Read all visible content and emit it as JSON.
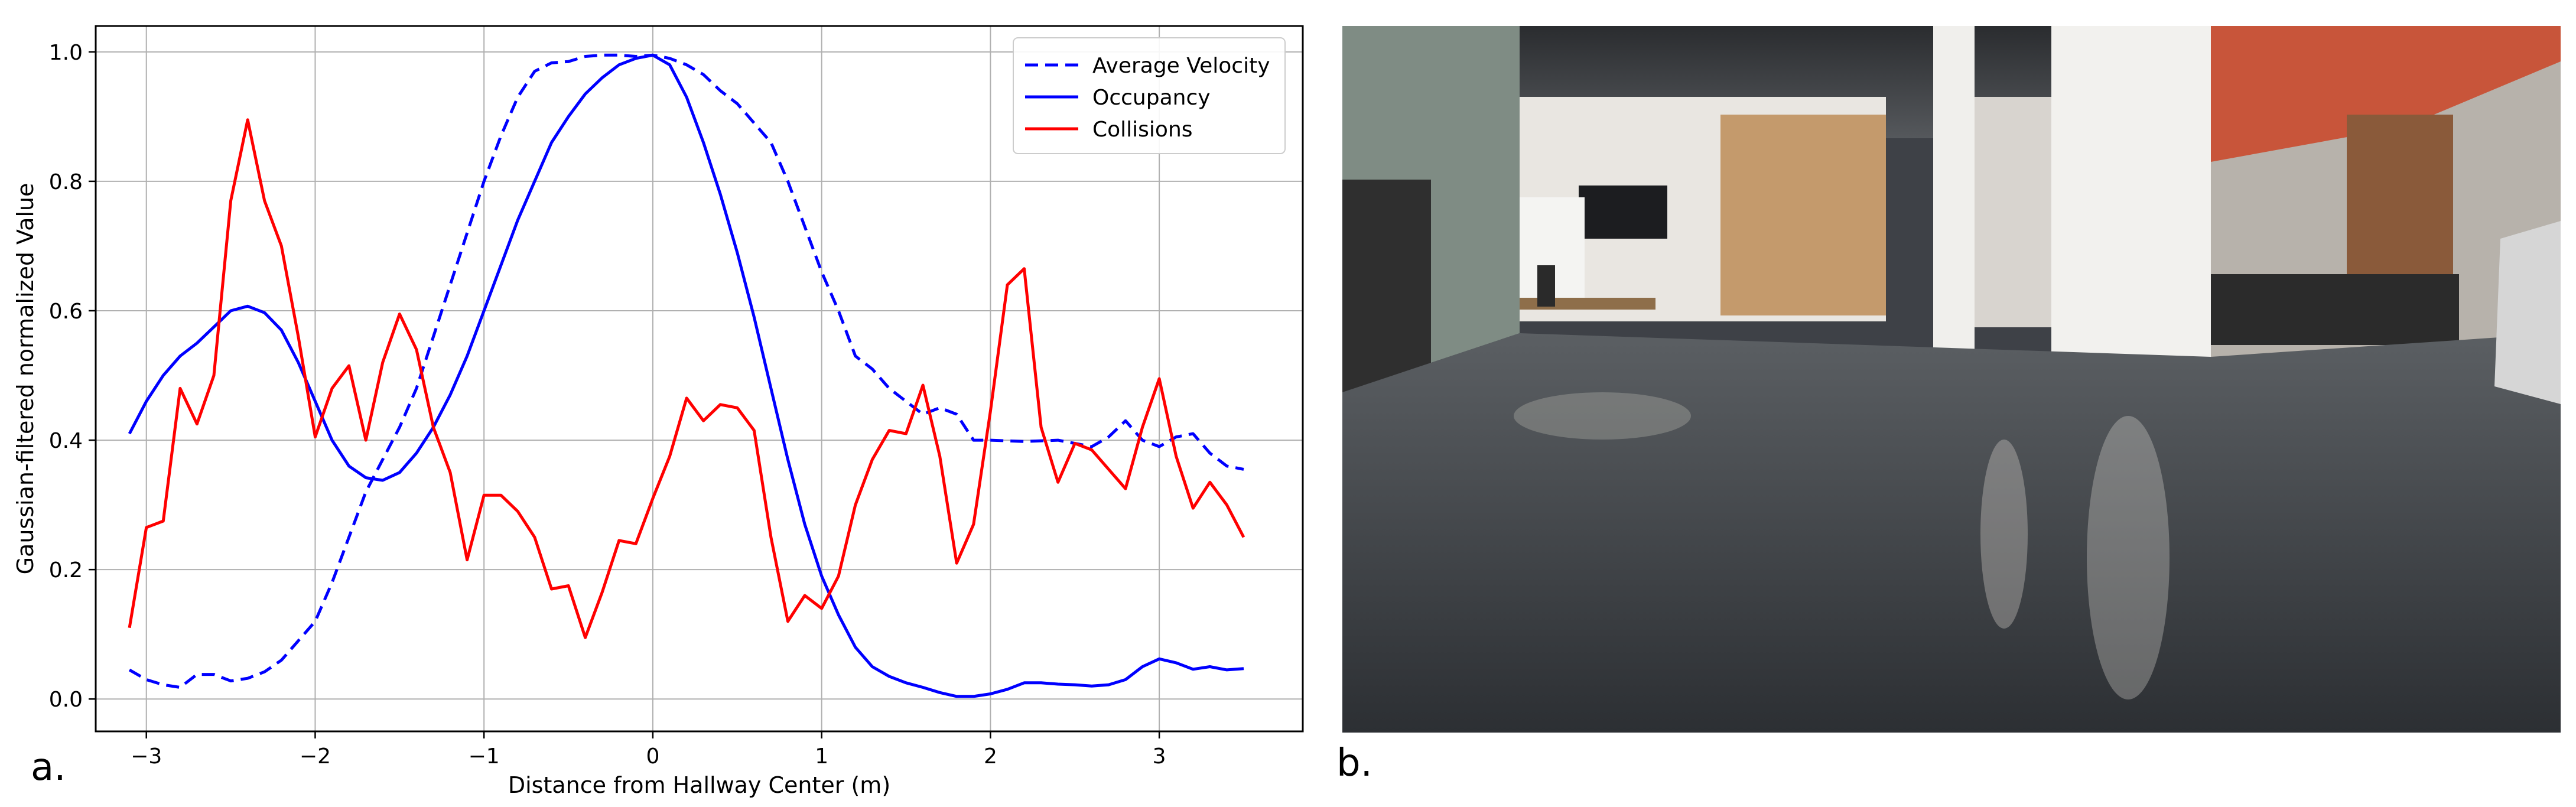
{
  "panels": {
    "a_label": "a.",
    "b_label": "b."
  },
  "chart_data": {
    "type": "line",
    "title": "",
    "xlabel": "Distance from Hallway Center (m)",
    "ylabel": "Gaussian-filtered normalized Value",
    "xlim": [
      -3.3,
      3.85
    ],
    "ylim": [
      -0.05,
      1.04
    ],
    "xticks": [
      -3,
      -2,
      -1,
      0,
      1,
      2,
      3
    ],
    "yticks": [
      0.0,
      0.2,
      0.4,
      0.6,
      0.8,
      1.0
    ],
    "grid": true,
    "legend_position": "top-right",
    "series": [
      {
        "name": "Average Velocity",
        "color": "#0000ff",
        "style": "dashed",
        "points": [
          [
            -3.1,
            0.045
          ],
          [
            -3.0,
            0.03
          ],
          [
            -2.9,
            0.022
          ],
          [
            -2.8,
            0.018
          ],
          [
            -2.7,
            0.038
          ],
          [
            -2.6,
            0.038
          ],
          [
            -2.5,
            0.028
          ],
          [
            -2.4,
            0.032
          ],
          [
            -2.3,
            0.042
          ],
          [
            -2.2,
            0.06
          ],
          [
            -2.1,
            0.09
          ],
          [
            -2.0,
            0.12
          ],
          [
            -1.9,
            0.18
          ],
          [
            -1.8,
            0.25
          ],
          [
            -1.7,
            0.32
          ],
          [
            -1.6,
            0.37
          ],
          [
            -1.5,
            0.42
          ],
          [
            -1.4,
            0.48
          ],
          [
            -1.3,
            0.56
          ],
          [
            -1.2,
            0.64
          ],
          [
            -1.1,
            0.72
          ],
          [
            -1.0,
            0.8
          ],
          [
            -0.9,
            0.87
          ],
          [
            -0.8,
            0.93
          ],
          [
            -0.7,
            0.97
          ],
          [
            -0.6,
            0.983
          ],
          [
            -0.5,
            0.985
          ],
          [
            -0.4,
            0.993
          ],
          [
            -0.3,
            0.995
          ],
          [
            -0.2,
            0.995
          ],
          [
            -0.1,
            0.993
          ],
          [
            0.0,
            0.995
          ],
          [
            0.1,
            0.99
          ],
          [
            0.2,
            0.98
          ],
          [
            0.3,
            0.965
          ],
          [
            0.4,
            0.94
          ],
          [
            0.5,
            0.92
          ],
          [
            0.6,
            0.89
          ],
          [
            0.7,
            0.86
          ],
          [
            0.8,
            0.8
          ],
          [
            0.9,
            0.73
          ],
          [
            1.0,
            0.66
          ],
          [
            1.1,
            0.6
          ],
          [
            1.2,
            0.53
          ],
          [
            1.3,
            0.51
          ],
          [
            1.4,
            0.48
          ],
          [
            1.5,
            0.46
          ],
          [
            1.6,
            0.44
          ],
          [
            1.7,
            0.45
          ],
          [
            1.8,
            0.44
          ],
          [
            1.9,
            0.4
          ],
          [
            2.0,
            0.4
          ],
          [
            2.2,
            0.398
          ],
          [
            2.4,
            0.4
          ],
          [
            2.6,
            0.39
          ],
          [
            2.7,
            0.405
          ],
          [
            2.8,
            0.43
          ],
          [
            2.9,
            0.4
          ],
          [
            3.0,
            0.39
          ],
          [
            3.1,
            0.405
          ],
          [
            3.2,
            0.41
          ],
          [
            3.3,
            0.38
          ],
          [
            3.4,
            0.36
          ],
          [
            3.5,
            0.355
          ]
        ]
      },
      {
        "name": "Occupancy",
        "color": "#0000ff",
        "style": "solid",
        "points": [
          [
            -3.1,
            0.41
          ],
          [
            -3.0,
            0.46
          ],
          [
            -2.9,
            0.5
          ],
          [
            -2.8,
            0.53
          ],
          [
            -2.7,
            0.55
          ],
          [
            -2.6,
            0.575
          ],
          [
            -2.5,
            0.6
          ],
          [
            -2.4,
            0.607
          ],
          [
            -2.3,
            0.597
          ],
          [
            -2.2,
            0.57
          ],
          [
            -2.1,
            0.52
          ],
          [
            -2.0,
            0.46
          ],
          [
            -1.9,
            0.4
          ],
          [
            -1.8,
            0.36
          ],
          [
            -1.7,
            0.342
          ],
          [
            -1.6,
            0.338
          ],
          [
            -1.5,
            0.35
          ],
          [
            -1.4,
            0.38
          ],
          [
            -1.3,
            0.42
          ],
          [
            -1.2,
            0.47
          ],
          [
            -1.1,
            0.53
          ],
          [
            -1.0,
            0.6
          ],
          [
            -0.9,
            0.67
          ],
          [
            -0.8,
            0.74
          ],
          [
            -0.7,
            0.8
          ],
          [
            -0.6,
            0.86
          ],
          [
            -0.5,
            0.9
          ],
          [
            -0.4,
            0.935
          ],
          [
            -0.3,
            0.96
          ],
          [
            -0.2,
            0.98
          ],
          [
            -0.1,
            0.99
          ],
          [
            0.0,
            0.995
          ],
          [
            0.1,
            0.98
          ],
          [
            0.2,
            0.93
          ],
          [
            0.3,
            0.86
          ],
          [
            0.4,
            0.78
          ],
          [
            0.5,
            0.69
          ],
          [
            0.6,
            0.59
          ],
          [
            0.7,
            0.48
          ],
          [
            0.8,
            0.37
          ],
          [
            0.9,
            0.27
          ],
          [
            1.0,
            0.19
          ],
          [
            1.1,
            0.13
          ],
          [
            1.2,
            0.08
          ],
          [
            1.3,
            0.05
          ],
          [
            1.4,
            0.035
          ],
          [
            1.5,
            0.025
          ],
          [
            1.6,
            0.018
          ],
          [
            1.7,
            0.01
          ],
          [
            1.8,
            0.004
          ],
          [
            1.9,
            0.004
          ],
          [
            2.0,
            0.008
          ],
          [
            2.1,
            0.015
          ],
          [
            2.2,
            0.025
          ],
          [
            2.3,
            0.025
          ],
          [
            2.4,
            0.023
          ],
          [
            2.5,
            0.022
          ],
          [
            2.6,
            0.02
          ],
          [
            2.7,
            0.022
          ],
          [
            2.8,
            0.03
          ],
          [
            2.9,
            0.05
          ],
          [
            3.0,
            0.062
          ],
          [
            3.1,
            0.056
          ],
          [
            3.2,
            0.046
          ],
          [
            3.3,
            0.05
          ],
          [
            3.4,
            0.045
          ],
          [
            3.5,
            0.047
          ]
        ]
      },
      {
        "name": "Collisions",
        "color": "#ff0000",
        "style": "solid",
        "points": [
          [
            -3.1,
            0.11
          ],
          [
            -3.0,
            0.265
          ],
          [
            -2.9,
            0.275
          ],
          [
            -2.8,
            0.48
          ],
          [
            -2.7,
            0.425
          ],
          [
            -2.6,
            0.5
          ],
          [
            -2.5,
            0.77
          ],
          [
            -2.4,
            0.895
          ],
          [
            -2.3,
            0.77
          ],
          [
            -2.2,
            0.7
          ],
          [
            -2.1,
            0.56
          ],
          [
            -2.0,
            0.405
          ],
          [
            -1.9,
            0.48
          ],
          [
            -1.8,
            0.515
          ],
          [
            -1.7,
            0.4
          ],
          [
            -1.6,
            0.52
          ],
          [
            -1.5,
            0.595
          ],
          [
            -1.4,
            0.54
          ],
          [
            -1.3,
            0.42
          ],
          [
            -1.2,
            0.35
          ],
          [
            -1.1,
            0.215
          ],
          [
            -1.0,
            0.315
          ],
          [
            -0.9,
            0.315
          ],
          [
            -0.8,
            0.29
          ],
          [
            -0.7,
            0.25
          ],
          [
            -0.6,
            0.17
          ],
          [
            -0.5,
            0.175
          ],
          [
            -0.4,
            0.095
          ],
          [
            -0.3,
            0.165
          ],
          [
            -0.2,
            0.245
          ],
          [
            -0.1,
            0.24
          ],
          [
            0.0,
            0.31
          ],
          [
            0.1,
            0.375
          ],
          [
            0.2,
            0.465
          ],
          [
            0.3,
            0.43
          ],
          [
            0.4,
            0.455
          ],
          [
            0.5,
            0.45
          ],
          [
            0.6,
            0.415
          ],
          [
            0.7,
            0.25
          ],
          [
            0.8,
            0.12
          ],
          [
            0.9,
            0.16
          ],
          [
            1.0,
            0.14
          ],
          [
            1.1,
            0.19
          ],
          [
            1.2,
            0.3
          ],
          [
            1.3,
            0.37
          ],
          [
            1.4,
            0.415
          ],
          [
            1.5,
            0.41
          ],
          [
            1.6,
            0.485
          ],
          [
            1.7,
            0.375
          ],
          [
            1.8,
            0.21
          ],
          [
            1.9,
            0.27
          ],
          [
            2.0,
            0.445
          ],
          [
            2.1,
            0.64
          ],
          [
            2.2,
            0.665
          ],
          [
            2.3,
            0.42
          ],
          [
            2.4,
            0.335
          ],
          [
            2.5,
            0.395
          ],
          [
            2.6,
            0.385
          ],
          [
            2.7,
            0.355
          ],
          [
            2.8,
            0.325
          ],
          [
            2.9,
            0.42
          ],
          [
            3.0,
            0.495
          ],
          [
            3.1,
            0.375
          ],
          [
            3.2,
            0.295
          ],
          [
            3.3,
            0.335
          ],
          [
            3.4,
            0.3
          ],
          [
            3.5,
            0.25
          ]
        ]
      }
    ]
  }
}
